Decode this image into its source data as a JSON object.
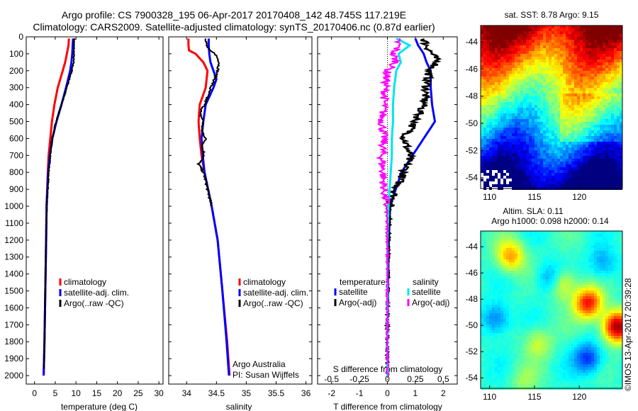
{
  "header": {
    "line1": "Argo profile: CS 7900328_195 06-Apr-2017 20170408_142 48.745S 117.219E",
    "line2": "Climatology: CARS2009. Satellite-adjusted climatology: synTS_20170406.nc (0.87d earlier)"
  },
  "colors": {
    "climatology": "#ff0000",
    "satellite": "#0000ff",
    "argo": "#000000",
    "satellite_s": "#00e5ee",
    "argo_s": "#ff00ff"
  },
  "chart_data": [
    {
      "type": "line",
      "name": "temperature-panel",
      "xlabel": "temperature (deg C)",
      "ylabel": "",
      "xlim": [
        -2,
        31
      ],
      "ylim": [
        2050,
        0
      ],
      "xticks": [
        0,
        5,
        10,
        15,
        20,
        25,
        30
      ],
      "yticks": [
        0,
        100,
        200,
        300,
        400,
        500,
        600,
        700,
        800,
        900,
        1000,
        1100,
        1200,
        1300,
        1400,
        1500,
        1600,
        1700,
        1800,
        1900,
        2000
      ],
      "legend": [
        "climatology",
        "satellite-adj. clim.",
        "Argo(..raw -QC)"
      ],
      "series": [
        {
          "name": "climatology",
          "depth": [
            10,
            50,
            100,
            150,
            200,
            300,
            400,
            500,
            600,
            700,
            800,
            1000,
            1200,
            1500,
            1800,
            2000
          ],
          "values": [
            8.3,
            8.2,
            7.8,
            7.4,
            6.8,
            5.6,
            4.8,
            4.2,
            3.8,
            3.4,
            3.2,
            2.9,
            2.8,
            2.6,
            2.4,
            2.2
          ]
        },
        {
          "name": "satellite-adj. clim.",
          "depth": [
            10,
            50,
            100,
            150,
            200,
            300,
            400,
            500,
            600,
            700,
            800,
            1000,
            1200,
            1500,
            1800,
            2000
          ],
          "values": [
            9.3,
            9.2,
            9.1,
            8.9,
            8.6,
            7.6,
            6.5,
            5.3,
            4.3,
            3.7,
            3.3,
            2.9,
            2.8,
            2.6,
            2.4,
            2.2
          ]
        },
        {
          "name": "Argo(..raw -QC)",
          "depth": [
            10,
            50,
            100,
            150,
            200,
            300,
            400,
            500,
            600,
            700,
            800,
            1000,
            1200,
            1500,
            1800,
            1960
          ],
          "values": [
            9.6,
            9.5,
            9.5,
            9.4,
            9.0,
            7.8,
            6.5,
            5.2,
            4.3,
            3.8,
            3.4,
            3.0,
            2.8,
            2.6,
            2.4,
            2.3
          ]
        }
      ],
      "annotations": []
    },
    {
      "type": "line",
      "name": "salinity-panel",
      "xlabel": "salinity",
      "xlim": [
        33.7,
        36.1
      ],
      "ylim": [
        2050,
        0
      ],
      "xticks": [
        34,
        34.5,
        35,
        35.5,
        36
      ],
      "legend": [
        "climatology",
        "satellite-adj. clim.",
        "Argo(..raw -QC)"
      ],
      "series": [
        {
          "name": "climatology",
          "depth": [
            10,
            50,
            80,
            100,
            150,
            200,
            300,
            400,
            500,
            600,
            700,
            800,
            1000,
            1200,
            1500,
            1800,
            2000
          ],
          "values": [
            34.03,
            34.03,
            34.04,
            34.15,
            34.28,
            34.35,
            34.32,
            34.22,
            34.2,
            34.22,
            34.25,
            34.3,
            34.42,
            34.52,
            34.6,
            34.68,
            34.72
          ]
        },
        {
          "name": "satellite-adj. clim.",
          "depth": [
            10,
            50,
            100,
            150,
            200,
            250,
            300,
            400,
            500,
            600,
            700,
            800,
            1000,
            1200,
            1500,
            1800,
            2000
          ],
          "values": [
            34.37,
            34.37,
            34.38,
            34.4,
            34.45,
            34.5,
            34.45,
            34.32,
            34.28,
            34.25,
            34.27,
            34.3,
            34.42,
            34.52,
            34.6,
            34.67,
            34.71
          ]
        },
        {
          "name": "Argo(..raw -QC)",
          "depth": [
            10,
            50,
            80,
            100,
            150,
            200,
            250,
            300,
            350,
            400,
            450,
            500,
            550,
            600,
            650,
            700,
            750,
            800,
            850,
            900,
            1000
          ],
          "values": [
            34.33,
            34.33,
            34.38,
            34.48,
            34.55,
            34.52,
            34.47,
            34.4,
            34.35,
            34.3,
            34.22,
            34.28,
            34.25,
            34.32,
            34.26,
            34.3,
            34.2,
            34.28,
            34.32,
            34.35,
            34.42
          ]
        }
      ],
      "annotations": [
        "Argo Australia",
        "PI: Susan Wijffels"
      ]
    },
    {
      "type": "line",
      "name": "difference-panel",
      "xlabel": "T difference from climatology",
      "xlabel_top": "S difference from climatology",
      "xlim": [
        -2.5,
        2.5
      ],
      "ylim": [
        2050,
        0
      ],
      "xticks": [
        -2,
        -1,
        0,
        1,
        2
      ],
      "xticks_top": [
        "-0.5",
        "-0.25",
        "0",
        "0.25",
        "0.5"
      ],
      "legend_title_left": "temperature",
      "legend_title_right": "salinity",
      "legend": [
        "satellite",
        "Argo(-adj)",
        "satellite",
        "Argo(-adj)"
      ],
      "series": [
        {
          "name": "satellite",
          "quantity": "temperature",
          "depth": [
            10,
            50,
            100,
            150,
            200,
            300,
            400,
            500,
            600,
            700,
            800,
            900,
            1000,
            1200,
            1500,
            1800,
            2000
          ],
          "values": [
            1.0,
            1.1,
            1.3,
            1.4,
            1.55,
            1.55,
            1.6,
            1.7,
            1.3,
            0.9,
            0.5,
            0.3,
            0.1,
            0.05,
            0.02,
            0.0,
            0.0
          ]
        },
        {
          "name": "Argo(-adj)",
          "quantity": "temperature",
          "depth": [
            10,
            50,
            100,
            150,
            200,
            300,
            400,
            500,
            600,
            700,
            800,
            900,
            1000,
            1200,
            1500,
            1800,
            2000
          ],
          "values": [
            1.3,
            1.4,
            1.6,
            1.8,
            1.5,
            1.4,
            1.3,
            1.0,
            0.6,
            0.8,
            0.6,
            0.3,
            0.1,
            0.05,
            0.02,
            0.0,
            0.0
          ]
        },
        {
          "name": "satellite",
          "quantity": "salinity",
          "depth": [
            10,
            50,
            100,
            150,
            200,
            300,
            400,
            500,
            600,
            700,
            800,
            900,
            1000,
            1200,
            1500,
            1800,
            2000
          ],
          "values": [
            0.08,
            0.2,
            0.1,
            0.12,
            0.08,
            0.06,
            0.05,
            0.05,
            0.04,
            0.04,
            0.03,
            0.02,
            0.01,
            0.0,
            0.0,
            0.0,
            0.0
          ]
        },
        {
          "name": "Argo(-adj)",
          "quantity": "salinity",
          "depth": [
            10,
            50,
            100,
            150,
            200,
            300,
            400,
            500,
            600,
            700,
            800,
            900,
            1000,
            1200,
            1500,
            1800,
            2000
          ],
          "values": [
            0.08,
            0.1,
            0.05,
            0.08,
            0.0,
            -0.02,
            -0.03,
            -0.05,
            -0.03,
            -0.05,
            -0.04,
            -0.03,
            -0.01,
            0.0,
            0.0,
            0.0,
            0.0
          ]
        }
      ]
    },
    {
      "type": "heatmap",
      "name": "sst-map",
      "title": "sat. SST: 8.78 Argo: 9.15",
      "xticks": [
        110,
        115,
        120
      ],
      "yticks": [
        -44,
        -46,
        -48,
        -50,
        -52,
        -54
      ],
      "xlim": [
        109,
        124.8
      ],
      "ylim": [
        -54.8,
        -42.8
      ]
    },
    {
      "type": "heatmap",
      "name": "sla-map",
      "title_line1": "Altim. SLA: 0.11",
      "title_line2": "Argo h1000: 0.098 h2000: 0.14",
      "xticks": [
        110,
        115,
        120
      ],
      "yticks": [
        -44,
        -46,
        -48,
        -50,
        -52,
        -54
      ],
      "xlim": [
        109,
        124.8
      ],
      "ylim": [
        -54.8,
        -42.8
      ],
      "stamp": "©IMOS 13-Apr-2017 20:39:28"
    }
  ]
}
